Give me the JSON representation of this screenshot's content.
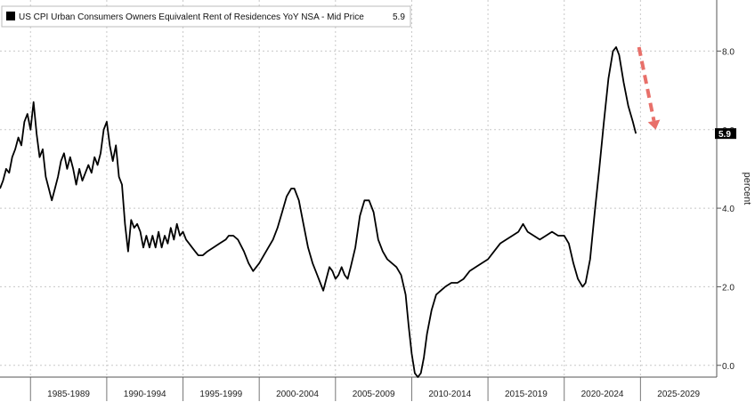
{
  "chart_data": {
    "type": "line",
    "legend": {
      "label": "US CPI Urban Consumers Owners Equivalent Rent of Residences YoY NSA - Mid Price",
      "value_label": "5.9",
      "placement": "top-left"
    },
    "ylabel": "percent",
    "y_axis_side": "right",
    "ylim": [
      -0.3,
      9.3
    ],
    "xlim": [
      1983.0,
      2030.0
    ],
    "y_ticks": [
      {
        "value": 0,
        "label": "0.0"
      },
      {
        "value": 2,
        "label": "2.0"
      },
      {
        "value": 4,
        "label": "4.0"
      },
      {
        "value": 6,
        "label": "6.0"
      },
      {
        "value": 8,
        "label": "8.0"
      }
    ],
    "x_categories": [
      {
        "label": "1985-1989",
        "start": 1985,
        "end": 1990
      },
      {
        "label": "1990-1994",
        "start": 1990,
        "end": 1995
      },
      {
        "label": "1995-1999",
        "start": 1995,
        "end": 2000
      },
      {
        "label": "2000-2004",
        "start": 2000,
        "end": 2005
      },
      {
        "label": "2005-2009",
        "start": 2005,
        "end": 2010
      },
      {
        "label": "2010-2014",
        "start": 2010,
        "end": 2015
      },
      {
        "label": "2015-2019",
        "start": 2015,
        "end": 2020
      },
      {
        "label": "2020-2024",
        "start": 2020,
        "end": 2025
      },
      {
        "label": "2025-2029",
        "start": 2025,
        "end": 2030
      }
    ],
    "grid": true,
    "last_value": {
      "value": 5.9,
      "label": "5.9"
    },
    "series": [
      {
        "color": "#000000",
        "points": [
          [
            1983.0,
            4.5
          ],
          [
            1983.2,
            4.7
          ],
          [
            1983.4,
            5.0
          ],
          [
            1983.6,
            4.9
          ],
          [
            1983.8,
            5.3
          ],
          [
            1984.0,
            5.5
          ],
          [
            1984.2,
            5.8
          ],
          [
            1984.4,
            5.6
          ],
          [
            1984.6,
            6.2
          ],
          [
            1984.8,
            6.4
          ],
          [
            1985.0,
            6.0
          ],
          [
            1985.2,
            6.7
          ],
          [
            1985.4,
            5.9
          ],
          [
            1985.6,
            5.3
          ],
          [
            1985.8,
            5.5
          ],
          [
            1986.0,
            4.8
          ],
          [
            1986.2,
            4.5
          ],
          [
            1986.4,
            4.2
          ],
          [
            1986.6,
            4.5
          ],
          [
            1986.8,
            4.8
          ],
          [
            1987.0,
            5.2
          ],
          [
            1987.2,
            5.4
          ],
          [
            1987.4,
            5.0
          ],
          [
            1987.6,
            5.3
          ],
          [
            1987.8,
            5.0
          ],
          [
            1988.0,
            4.6
          ],
          [
            1988.2,
            5.0
          ],
          [
            1988.4,
            4.7
          ],
          [
            1988.6,
            4.9
          ],
          [
            1988.8,
            5.1
          ],
          [
            1989.0,
            4.9
          ],
          [
            1989.2,
            5.3
          ],
          [
            1989.4,
            5.1
          ],
          [
            1989.6,
            5.4
          ],
          [
            1989.8,
            6.0
          ],
          [
            1990.0,
            6.2
          ],
          [
            1990.2,
            5.6
          ],
          [
            1990.4,
            5.2
          ],
          [
            1990.6,
            5.6
          ],
          [
            1990.8,
            4.8
          ],
          [
            1991.0,
            4.6
          ],
          [
            1991.2,
            3.6
          ],
          [
            1991.4,
            2.9
          ],
          [
            1991.6,
            3.7
          ],
          [
            1991.8,
            3.5
          ],
          [
            1992.0,
            3.6
          ],
          [
            1992.2,
            3.4
          ],
          [
            1992.4,
            3.0
          ],
          [
            1992.6,
            3.3
          ],
          [
            1992.8,
            3.0
          ],
          [
            1993.0,
            3.3
          ],
          [
            1993.2,
            3.0
          ],
          [
            1993.4,
            3.4
          ],
          [
            1993.6,
            3.0
          ],
          [
            1993.8,
            3.3
          ],
          [
            1994.0,
            3.1
          ],
          [
            1994.2,
            3.5
          ],
          [
            1994.4,
            3.2
          ],
          [
            1994.6,
            3.6
          ],
          [
            1994.8,
            3.3
          ],
          [
            1995.0,
            3.4
          ],
          [
            1995.2,
            3.2
          ],
          [
            1995.4,
            3.1
          ],
          [
            1995.6,
            3.0
          ],
          [
            1995.8,
            2.9
          ],
          [
            1996.0,
            2.8
          ],
          [
            1996.3,
            2.8
          ],
          [
            1996.6,
            2.9
          ],
          [
            1997.0,
            3.0
          ],
          [
            1997.4,
            3.1
          ],
          [
            1997.8,
            3.2
          ],
          [
            1998.0,
            3.3
          ],
          [
            1998.3,
            3.3
          ],
          [
            1998.6,
            3.2
          ],
          [
            1999.0,
            2.9
          ],
          [
            1999.3,
            2.6
          ],
          [
            1999.6,
            2.4
          ],
          [
            2000.0,
            2.6
          ],
          [
            2000.3,
            2.8
          ],
          [
            2000.6,
            3.0
          ],
          [
            2000.9,
            3.2
          ],
          [
            2001.2,
            3.5
          ],
          [
            2001.5,
            3.9
          ],
          [
            2001.8,
            4.3
          ],
          [
            2002.1,
            4.5
          ],
          [
            2002.3,
            4.5
          ],
          [
            2002.6,
            4.2
          ],
          [
            2002.9,
            3.6
          ],
          [
            2003.2,
            3.0
          ],
          [
            2003.5,
            2.6
          ],
          [
            2003.8,
            2.3
          ],
          [
            2004.0,
            2.1
          ],
          [
            2004.2,
            1.9
          ],
          [
            2004.4,
            2.2
          ],
          [
            2004.6,
            2.5
          ],
          [
            2004.8,
            2.4
          ],
          [
            2005.0,
            2.2
          ],
          [
            2005.2,
            2.3
          ],
          [
            2005.4,
            2.5
          ],
          [
            2005.6,
            2.3
          ],
          [
            2005.8,
            2.2
          ],
          [
            2006.0,
            2.5
          ],
          [
            2006.3,
            3.0
          ],
          [
            2006.6,
            3.8
          ],
          [
            2006.9,
            4.2
          ],
          [
            2007.2,
            4.2
          ],
          [
            2007.5,
            3.9
          ],
          [
            2007.8,
            3.2
          ],
          [
            2008.1,
            2.9
          ],
          [
            2008.4,
            2.7
          ],
          [
            2008.7,
            2.6
          ],
          [
            2009.0,
            2.5
          ],
          [
            2009.3,
            2.3
          ],
          [
            2009.6,
            1.8
          ],
          [
            2009.8,
            1.0
          ],
          [
            2010.0,
            0.3
          ],
          [
            2010.2,
            -0.2
          ],
          [
            2010.4,
            -0.3
          ],
          [
            2010.6,
            -0.2
          ],
          [
            2010.8,
            0.2
          ],
          [
            2011.0,
            0.8
          ],
          [
            2011.3,
            1.4
          ],
          [
            2011.6,
            1.8
          ],
          [
            2011.9,
            1.9
          ],
          [
            2012.2,
            2.0
          ],
          [
            2012.6,
            2.1
          ],
          [
            2013.0,
            2.1
          ],
          [
            2013.4,
            2.2
          ],
          [
            2013.8,
            2.4
          ],
          [
            2014.2,
            2.5
          ],
          [
            2014.6,
            2.6
          ],
          [
            2015.0,
            2.7
          ],
          [
            2015.4,
            2.9
          ],
          [
            2015.8,
            3.1
          ],
          [
            2016.2,
            3.2
          ],
          [
            2016.6,
            3.3
          ],
          [
            2017.0,
            3.4
          ],
          [
            2017.3,
            3.6
          ],
          [
            2017.6,
            3.4
          ],
          [
            2018.0,
            3.3
          ],
          [
            2018.4,
            3.2
          ],
          [
            2018.8,
            3.3
          ],
          [
            2019.2,
            3.4
          ],
          [
            2019.6,
            3.3
          ],
          [
            2020.0,
            3.3
          ],
          [
            2020.3,
            3.1
          ],
          [
            2020.6,
            2.6
          ],
          [
            2020.9,
            2.2
          ],
          [
            2021.2,
            2.0
          ],
          [
            2021.4,
            2.1
          ],
          [
            2021.7,
            2.7
          ],
          [
            2022.0,
            3.9
          ],
          [
            2022.3,
            5.0
          ],
          [
            2022.6,
            6.2
          ],
          [
            2022.9,
            7.3
          ],
          [
            2023.2,
            8.0
          ],
          [
            2023.4,
            8.1
          ],
          [
            2023.6,
            7.9
          ],
          [
            2023.9,
            7.2
          ],
          [
            2024.2,
            6.6
          ],
          [
            2024.5,
            6.2
          ],
          [
            2024.7,
            5.9
          ]
        ]
      }
    ],
    "annotations": [
      {
        "type": "dashed-arrow",
        "color": "#e8706a",
        "from": [
          2024.9,
          8.1
        ],
        "to": [
          2026.0,
          6.0
        ]
      }
    ]
  }
}
